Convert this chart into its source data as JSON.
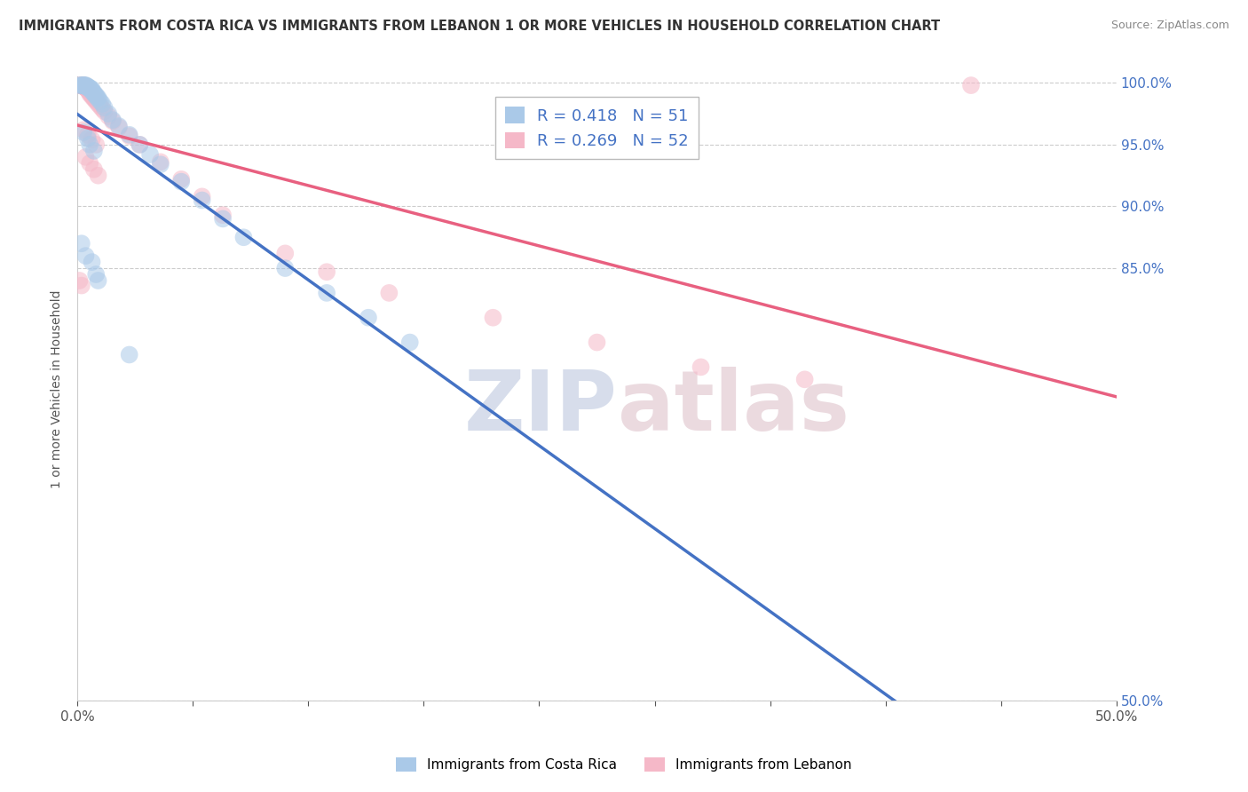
{
  "title": "IMMIGRANTS FROM COSTA RICA VS IMMIGRANTS FROM LEBANON 1 OR MORE VEHICLES IN HOUSEHOLD CORRELATION CHART",
  "source": "Source: ZipAtlas.com",
  "ylabel_label": "1 or more Vehicles in Household",
  "legend_cr": "Immigrants from Costa Rica",
  "legend_lb": "Immigrants from Lebanon",
  "R_cr": 0.418,
  "N_cr": 51,
  "R_lb": 0.269,
  "N_lb": 52,
  "color_cr": "#aac9e8",
  "color_lb": "#f5b8c8",
  "line_cr": "#4472c4",
  "line_lb": "#e86080",
  "background": "#ffffff",
  "grid_color": "#cccccc",
  "watermark_zip": "ZIP",
  "watermark_atlas": "atlas",
  "ytick_labels": [
    "100.0%",
    "95.0%",
    "90.0%",
    "85.0%",
    "50.0%"
  ],
  "ytick_vals": [
    1.0,
    0.95,
    0.9,
    0.85,
    0.5
  ],
  "xtick_labels": [
    "0.0%",
    "",
    "",
    "",
    "",
    "",
    "",
    "",
    "",
    "50.0%"
  ],
  "cr_x": [
    0.001,
    0.002,
    0.002,
    0.003,
    0.003,
    0.003,
    0.004,
    0.004,
    0.004,
    0.005,
    0.005,
    0.005,
    0.006,
    0.006,
    0.007,
    0.007,
    0.007,
    0.008,
    0.008,
    0.009,
    0.009,
    0.01,
    0.01,
    0.011,
    0.012,
    0.013,
    0.015,
    0.017,
    0.02,
    0.025,
    0.03,
    0.035,
    0.04,
    0.05,
    0.06,
    0.07,
    0.08,
    0.1,
    0.12,
    0.14,
    0.16,
    0.003,
    0.005,
    0.006,
    0.008,
    0.002,
    0.004,
    0.007,
    0.009,
    0.01,
    0.025
  ],
  "cr_y": [
    0.998,
    0.998,
    0.998,
    0.998,
    0.998,
    0.998,
    0.998,
    0.998,
    0.997,
    0.997,
    0.997,
    0.996,
    0.996,
    0.995,
    0.995,
    0.994,
    0.993,
    0.992,
    0.991,
    0.99,
    0.989,
    0.988,
    0.987,
    0.985,
    0.983,
    0.98,
    0.975,
    0.97,
    0.965,
    0.958,
    0.95,
    0.942,
    0.934,
    0.92,
    0.905,
    0.89,
    0.875,
    0.85,
    0.83,
    0.81,
    0.79,
    0.96,
    0.955,
    0.95,
    0.945,
    0.87,
    0.86,
    0.855,
    0.845,
    0.84,
    0.78
  ],
  "lb_x": [
    0.001,
    0.002,
    0.002,
    0.003,
    0.003,
    0.003,
    0.004,
    0.004,
    0.004,
    0.005,
    0.005,
    0.005,
    0.006,
    0.006,
    0.006,
    0.007,
    0.007,
    0.008,
    0.008,
    0.009,
    0.009,
    0.01,
    0.011,
    0.012,
    0.013,
    0.015,
    0.017,
    0.02,
    0.025,
    0.03,
    0.04,
    0.05,
    0.06,
    0.07,
    0.1,
    0.12,
    0.15,
    0.2,
    0.25,
    0.3,
    0.003,
    0.005,
    0.007,
    0.009,
    0.004,
    0.006,
    0.008,
    0.01,
    0.43,
    0.001,
    0.002,
    0.35
  ],
  "lb_y": [
    0.998,
    0.998,
    0.998,
    0.998,
    0.997,
    0.997,
    0.997,
    0.996,
    0.996,
    0.995,
    0.995,
    0.994,
    0.993,
    0.992,
    0.991,
    0.99,
    0.989,
    0.988,
    0.987,
    0.986,
    0.985,
    0.983,
    0.981,
    0.979,
    0.977,
    0.973,
    0.969,
    0.964,
    0.957,
    0.95,
    0.936,
    0.922,
    0.908,
    0.893,
    0.862,
    0.847,
    0.83,
    0.81,
    0.79,
    0.77,
    0.962,
    0.958,
    0.954,
    0.95,
    0.94,
    0.935,
    0.93,
    0.925,
    0.998,
    0.84,
    0.836,
    0.76
  ],
  "xlim": [
    0.0,
    0.5
  ],
  "ylim": [
    0.5,
    1.005
  ]
}
